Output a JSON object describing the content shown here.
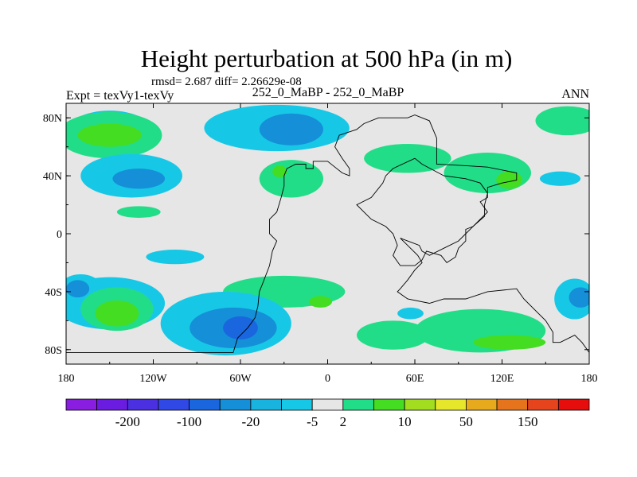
{
  "chart_data": {
    "type": "heatmap",
    "title": "Height perturbation at 500 hPa (in m)",
    "stats_line": "rmsd= 2.687 diff= 2.26629e-08",
    "subtitle": "252_0_MaBP - 252_0_MaBP",
    "left_label": "Expt = texVy1-texVy",
    "right_label": "ANN",
    "x_ticks": [
      {
        "value": -180,
        "label": "180"
      },
      {
        "value": -120,
        "label": "120W"
      },
      {
        "value": -60,
        "label": "60W"
      },
      {
        "value": 0,
        "label": "0"
      },
      {
        "value": 60,
        "label": "60E"
      },
      {
        "value": 120,
        "label": "120E"
      },
      {
        "value": 180,
        "label": "180"
      }
    ],
    "y_ticks": [
      {
        "value": 80,
        "label": "80N"
      },
      {
        "value": 40,
        "label": "40N"
      },
      {
        "value": 0,
        "label": "0"
      },
      {
        "value": -40,
        "label": "40S"
      },
      {
        "value": -80,
        "label": "80S"
      }
    ],
    "xlim": [
      -180,
      180
    ],
    "ylim": [
      -90,
      90
    ],
    "colorbar": {
      "colors": [
        "#8a1ee0",
        "#6a1de0",
        "#4a30e0",
        "#2f48e6",
        "#1a66de",
        "#1590d8",
        "#19b3df",
        "#17c8e6",
        "#e6e6e6",
        "#22dd88",
        "#44dd22",
        "#a3dd20",
        "#e6e62a",
        "#e6aa1c",
        "#e6741c",
        "#e6441c",
        "#e60d0d"
      ],
      "labels": [
        "-200",
        "-100",
        "-20",
        "-5",
        "2",
        "10",
        "50",
        "150"
      ],
      "label_after_box": [
        1,
        3,
        5,
        7,
        8,
        10,
        12,
        14
      ]
    },
    "fields": [
      {
        "level": -5,
        "color": "#17c8e6",
        "lon": -150,
        "lat": 70,
        "rx": 30,
        "ry": 15
      },
      {
        "level": 2,
        "color": "#22dd88",
        "lon": -150,
        "lat": 68,
        "rx": 36,
        "ry": 16
      },
      {
        "level": 10,
        "color": "#44dd22",
        "lon": -150,
        "lat": 68,
        "rx": 22,
        "ry": 8
      },
      {
        "level": -5,
        "color": "#17c8e6",
        "lon": -135,
        "lat": 40,
        "rx": 35,
        "ry": 15
      },
      {
        "level": -20,
        "color": "#1590d8",
        "lon": -130,
        "lat": 38,
        "rx": 18,
        "ry": 7
      },
      {
        "level": 2,
        "color": "#22dd88",
        "lon": -130,
        "lat": 15,
        "rx": 15,
        "ry": 4
      },
      {
        "level": -5,
        "color": "#17c8e6",
        "lon": -35,
        "lat": 73,
        "rx": 50,
        "ry": 16
      },
      {
        "level": -20,
        "color": "#1590d8",
        "lon": -25,
        "lat": 72,
        "rx": 22,
        "ry": 11
      },
      {
        "level": 2,
        "color": "#22dd88",
        "lon": -25,
        "lat": 38,
        "rx": 22,
        "ry": 13
      },
      {
        "level": 10,
        "color": "#44dd22",
        "lon": -33,
        "lat": 43,
        "rx": 5,
        "ry": 4
      },
      {
        "level": 2,
        "color": "#22dd88",
        "lon": 55,
        "lat": 52,
        "rx": 30,
        "ry": 10
      },
      {
        "level": 2,
        "color": "#22dd88",
        "lon": 110,
        "lat": 42,
        "rx": 30,
        "ry": 14
      },
      {
        "level": 10,
        "color": "#44dd22",
        "lon": 125,
        "lat": 37,
        "rx": 9,
        "ry": 6
      },
      {
        "level": -5,
        "color": "#17c8e6",
        "lon": 160,
        "lat": 38,
        "rx": 14,
        "ry": 5
      },
      {
        "level": 2,
        "color": "#22dd88",
        "lon": 165,
        "lat": 78,
        "rx": 22,
        "ry": 10
      },
      {
        "level": -5,
        "color": "#17c8e6",
        "lon": -105,
        "lat": -16,
        "rx": 20,
        "ry": 5
      },
      {
        "level": -5,
        "color": "#17c8e6",
        "lon": -150,
        "lat": -48,
        "rx": 38,
        "ry": 18
      },
      {
        "level": -5,
        "color": "#17c8e6",
        "lon": -170,
        "lat": -40,
        "rx": 16,
        "ry": 12
      },
      {
        "level": -20,
        "color": "#1590d8",
        "lon": -172,
        "lat": -38,
        "rx": 8,
        "ry": 6
      },
      {
        "level": 2,
        "color": "#22dd88",
        "lon": -145,
        "lat": -52,
        "rx": 25,
        "ry": 15
      },
      {
        "level": 10,
        "color": "#44dd22",
        "lon": -145,
        "lat": -55,
        "rx": 15,
        "ry": 9
      },
      {
        "level": 2,
        "color": "#22dd88",
        "lon": -30,
        "lat": -40,
        "rx": 42,
        "ry": 11
      },
      {
        "level": 10,
        "color": "#44dd22",
        "lon": -5,
        "lat": -47,
        "rx": 8,
        "ry": 4
      },
      {
        "level": -5,
        "color": "#17c8e6",
        "lon": -70,
        "lat": -62,
        "rx": 45,
        "ry": 22
      },
      {
        "level": -20,
        "color": "#1590d8",
        "lon": -65,
        "lat": -65,
        "rx": 30,
        "ry": 14
      },
      {
        "level": -20,
        "color": "#1a66de",
        "lon": -60,
        "lat": -65,
        "rx": 12,
        "ry": 8
      },
      {
        "level": -5,
        "color": "#17c8e6",
        "lon": 57,
        "lat": -55,
        "rx": 9,
        "ry": 4
      },
      {
        "level": 2,
        "color": "#22dd88",
        "lon": 105,
        "lat": -67,
        "rx": 45,
        "ry": 15
      },
      {
        "level": 2,
        "color": "#22dd88",
        "lon": 45,
        "lat": -70,
        "rx": 25,
        "ry": 10
      },
      {
        "level": 10,
        "color": "#44dd22",
        "lon": 125,
        "lat": -75,
        "rx": 25,
        "ry": 5
      },
      {
        "level": -5,
        "color": "#17c8e6",
        "lon": 170,
        "lat": -45,
        "rx": 14,
        "ry": 14
      },
      {
        "level": -20,
        "color": "#1590d8",
        "lon": 174,
        "lat": -44,
        "rx": 8,
        "ry": 7
      }
    ],
    "coastlines": [
      [
        [
          -180,
          -82
        ],
        [
          -65,
          -82
        ],
        [
          -62,
          -72
        ],
        [
          -55,
          -65
        ],
        [
          -50,
          -58
        ],
        [
          -48,
          -50
        ],
        [
          -47,
          -40
        ],
        [
          -45,
          -35
        ],
        [
          -40,
          -22
        ],
        [
          -38,
          -12
        ],
        [
          -35,
          -5
        ],
        [
          -40,
          0
        ],
        [
          -40,
          10
        ],
        [
          -35,
          15
        ],
        [
          -32,
          25
        ],
        [
          -30,
          33
        ],
        [
          -30,
          40
        ],
        [
          -28,
          45
        ],
        [
          -22,
          48
        ],
        [
          -15,
          48
        ],
        [
          -15,
          45
        ],
        [
          -10,
          45
        ],
        [
          -10,
          50
        ],
        [
          0,
          50
        ],
        [
          5,
          46
        ],
        [
          10,
          42
        ],
        [
          15,
          40
        ],
        [
          15,
          45
        ],
        [
          10,
          52
        ],
        [
          5,
          60
        ],
        [
          8,
          68
        ],
        [
          20,
          72
        ],
        [
          25,
          76
        ],
        [
          35,
          80
        ],
        [
          55,
          80
        ],
        [
          60,
          82
        ],
        [
          70,
          78
        ],
        [
          75,
          66
        ],
        [
          75,
          48
        ],
        [
          95,
          47
        ],
        [
          110,
          46
        ],
        [
          130,
          42
        ],
        [
          130,
          37
        ],
        [
          120,
          35
        ],
        [
          110,
          32
        ],
        [
          110,
          25
        ],
        [
          105,
          22
        ],
        [
          110,
          15
        ],
        [
          105,
          10
        ],
        [
          100,
          5
        ],
        [
          95,
          0
        ],
        [
          90,
          -5
        ],
        [
          80,
          -10
        ],
        [
          70,
          -15
        ],
        [
          65,
          -12
        ],
        [
          63,
          -8
        ],
        [
          55,
          -5
        ],
        [
          50,
          -3
        ],
        [
          57,
          -10
        ],
        [
          62,
          -15
        ],
        [
          65,
          -20
        ],
        [
          60,
          -25
        ],
        [
          55,
          -32
        ],
        [
          50,
          -38
        ],
        [
          48,
          -40
        ],
        [
          55,
          -45
        ],
        [
          70,
          -48
        ],
        [
          80,
          -45
        ],
        [
          95,
          -45
        ],
        [
          110,
          -40
        ],
        [
          130,
          -38
        ],
        [
          135,
          -45
        ],
        [
          145,
          -55
        ],
        [
          150,
          -60
        ],
        [
          155,
          -68
        ],
        [
          155,
          -75
        ],
        [
          160,
          -75
        ],
        [
          170,
          -70
        ],
        [
          175,
          -75
        ],
        [
          180,
          -82
        ]
      ],
      [
        [
          60,
          52
        ],
        [
          45,
          45
        ],
        [
          40,
          40
        ],
        [
          38,
          35
        ],
        [
          30,
          25
        ],
        [
          20,
          20
        ],
        [
          25,
          15
        ],
        [
          30,
          10
        ],
        [
          40,
          5
        ],
        [
          45,
          0
        ],
        [
          48,
          -8
        ],
        [
          45,
          -15
        ],
        [
          50,
          -22
        ],
        [
          60,
          -22
        ],
        [
          65,
          -18
        ],
        [
          68,
          -12
        ],
        [
          78,
          -15
        ],
        [
          82,
          -20
        ],
        [
          88,
          -16
        ],
        [
          90,
          -10
        ],
        [
          95,
          -5
        ],
        [
          95,
          3
        ],
        [
          100,
          5
        ],
        [
          108,
          12
        ],
        [
          108,
          20
        ],
        [
          110,
          28
        ],
        [
          105,
          35
        ],
        [
          95,
          38
        ],
        [
          80,
          40
        ],
        [
          65,
          48
        ],
        [
          60,
          52
        ]
      ]
    ]
  }
}
